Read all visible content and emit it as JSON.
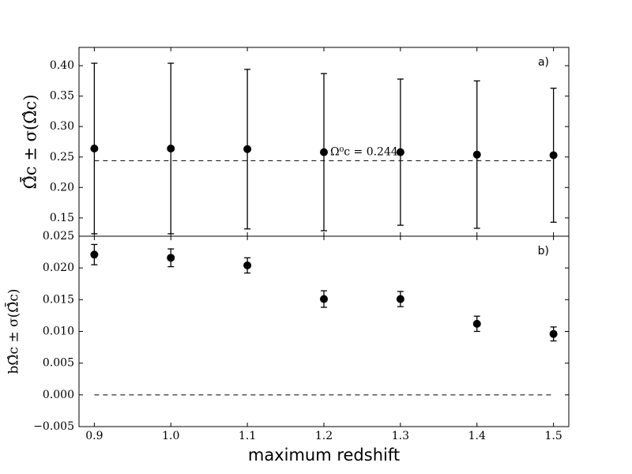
{
  "chart_data": [
    {
      "type": "errorbar",
      "panel_label": "a)",
      "ylabel": "Ω̂̄c ± σ(Ω̂c)",
      "x": [
        0.9,
        1.0,
        1.1,
        1.2,
        1.3,
        1.4,
        1.5
      ],
      "values": [
        0.264,
        0.264,
        0.263,
        0.258,
        0.258,
        0.254,
        0.253
      ],
      "errors": [
        0.14,
        0.14,
        0.131,
        0.129,
        0.12,
        0.121,
        0.11
      ],
      "color": "#000000",
      "xlim": [
        0.88,
        1.52
      ],
      "ylim": [
        0.12,
        0.43
      ],
      "yticks": [
        0.15,
        {
          "value": 0.2,
          "label": "0.20"
        },
        0.25,
        {
          "value": 0.3,
          "label": "0.30"
        },
        0.35,
        {
          "value": 0.4,
          "label": "0.40"
        }
      ],
      "hline": 0.244,
      "annotation": "Ω⁰c = 0.244"
    },
    {
      "type": "errorbar",
      "panel_label": "b)",
      "ylabel": "bΩ̂c ± σ(Ω̂̄c)",
      "xlabel": "maximum redshift",
      "x": [
        0.9,
        1.0,
        1.1,
        1.2,
        1.3,
        1.4,
        1.5
      ],
      "values": [
        0.0221,
        0.0216,
        0.0204,
        0.0151,
        0.0151,
        0.0112,
        0.0096
      ],
      "errors": [
        0.0016,
        0.0014,
        0.0012,
        0.0013,
        0.0012,
        0.0012,
        0.0011
      ],
      "color": "#000000",
      "xlim": [
        0.88,
        1.52
      ],
      "ylim": [
        -0.005,
        0.025
      ],
      "xticks": [
        0.9,
        {
          "value": 1.0,
          "label": "1.0"
        },
        1.1,
        1.2,
        1.3,
        1.4,
        1.5
      ],
      "yticks": [
        {
          "value": -0.005,
          "label": "−0.005"
        },
        {
          "value": 0,
          "label": "0.000"
        },
        0.005,
        {
          "value": 0.01,
          "label": "0.010"
        },
        0.015,
        {
          "value": 0.02,
          "label": "0.020"
        },
        0.025
      ],
      "hline": 0
    }
  ]
}
